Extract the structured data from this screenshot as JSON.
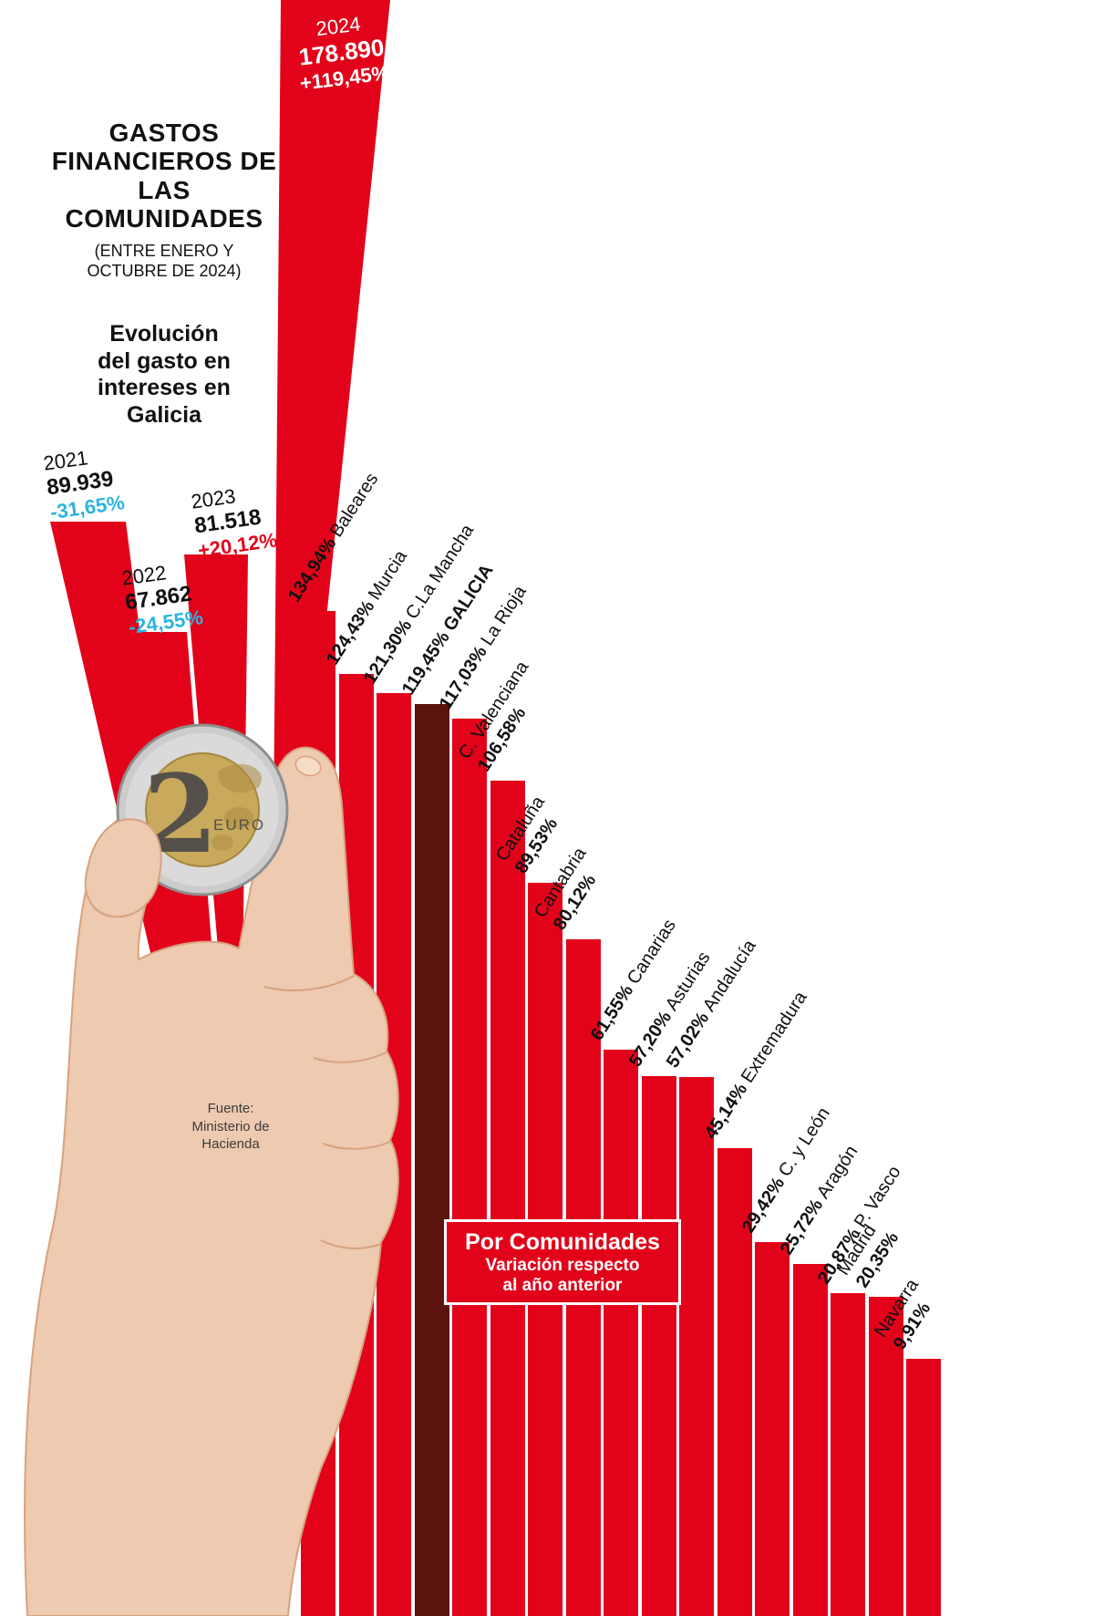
{
  "header": {
    "title": "GASTOS FINANCIEROS DE LAS COMUNIDADES",
    "subtitle": "(ENTRE ENERO Y OCTUBRE DE 2024)",
    "section": "Evolución del gasto en intereses en Galicia"
  },
  "source": "Fuente: Ministerio de Hacienda",
  "box": {
    "title": "Por Comunidades",
    "subtitle1": "Variación respecto",
    "subtitle2": "al año anterior"
  },
  "coin": {
    "number": "2",
    "text": "EURO"
  },
  "colors": {
    "red": "#e2031a",
    "galicia_dark": "#5c120d",
    "cyan": "#2ab4e0",
    "white": "#ffffff"
  },
  "chart_data": [
    {
      "type": "bar",
      "title": "Evolución del gasto en intereses en Galicia",
      "categories": [
        "2021",
        "2022",
        "2023",
        "2024"
      ],
      "values": [
        89939,
        67862,
        81518,
        178890
      ],
      "points": [
        {
          "year": "2021",
          "value": "89.939",
          "change": "-31,65%",
          "change_color": "#2ab4e0"
        },
        {
          "year": "2022",
          "value": "67.862",
          "change": "-24,55%",
          "change_color": "#2ab4e0"
        },
        {
          "year": "2023",
          "value": "81.518",
          "change": "+20,12%",
          "change_color": "#e2031a"
        },
        {
          "year": "2024",
          "value": "178.890",
          "change": "+119,45%",
          "change_color": "#ffffff"
        }
      ]
    },
    {
      "type": "bar",
      "title": "Por Comunidades — Variación respecto al año anterior",
      "unit": "%",
      "categories": [
        "Baleares",
        "Murcia",
        "C.La Mancha",
        "GALICIA",
        "La Rioja",
        "C. Valenciana",
        "Cataluña",
        "Cantabria",
        "Canarias",
        "Asturias",
        "Andalucía",
        "Extremadura",
        "C. y León",
        "Aragón",
        "P. Vasco",
        "Madrid",
        "Navarra"
      ],
      "values": [
        134.94,
        124.43,
        121.3,
        119.45,
        117.03,
        106.58,
        89.53,
        80.12,
        61.55,
        57.2,
        57.02,
        45.14,
        29.42,
        25.72,
        20.87,
        20.35,
        9.91
      ],
      "bars": [
        {
          "region": "Baleares",
          "pct": "134,94%",
          "value": 134.94,
          "highlight": false,
          "two_line": false
        },
        {
          "region": "Murcia",
          "pct": "124,43%",
          "value": 124.43,
          "highlight": false,
          "two_line": false
        },
        {
          "region": "C.La Mancha",
          "pct": "121,30%",
          "value": 121.3,
          "highlight": false,
          "two_line": false
        },
        {
          "region": "GALICIA",
          "pct": "119,45%",
          "value": 119.45,
          "highlight": true,
          "two_line": false
        },
        {
          "region": "La Rioja",
          "pct": "117,03%",
          "value": 117.03,
          "highlight": false,
          "two_line": false
        },
        {
          "region": "C. Valenciana",
          "pct": "106,58%",
          "value": 106.58,
          "highlight": false,
          "two_line": true
        },
        {
          "region": "Cataluña",
          "pct": "89,53%",
          "value": 89.53,
          "highlight": false,
          "two_line": true
        },
        {
          "region": "Cantabria",
          "pct": "80,12%",
          "value": 80.12,
          "highlight": false,
          "two_line": true
        },
        {
          "region": "Canarias",
          "pct": "61,55%",
          "value": 61.55,
          "highlight": false,
          "two_line": false
        },
        {
          "region": "Asturias",
          "pct": "57,20%",
          "value": 57.2,
          "highlight": false,
          "two_line": false
        },
        {
          "region": "Andalucía",
          "pct": "57,02%",
          "value": 57.02,
          "highlight": false,
          "two_line": false
        },
        {
          "region": "Extremadura",
          "pct": "45,14%",
          "value": 45.14,
          "highlight": false,
          "two_line": false
        },
        {
          "region": "C. y León",
          "pct": "29,42%",
          "value": 29.42,
          "highlight": false,
          "two_line": false
        },
        {
          "region": "Aragón",
          "pct": "25,72%",
          "value": 25.72,
          "highlight": false,
          "two_line": false
        },
        {
          "region": "P. Vasco",
          "pct": "20,87%",
          "value": 20.87,
          "highlight": false,
          "two_line": false
        },
        {
          "region": "Madrid",
          "pct": "20,35%",
          "value": 20.35,
          "highlight": false,
          "two_line": true
        },
        {
          "region": "Navarra",
          "pct": "9,91%",
          "value": 9.91,
          "highlight": false,
          "two_line": true
        }
      ]
    }
  ]
}
